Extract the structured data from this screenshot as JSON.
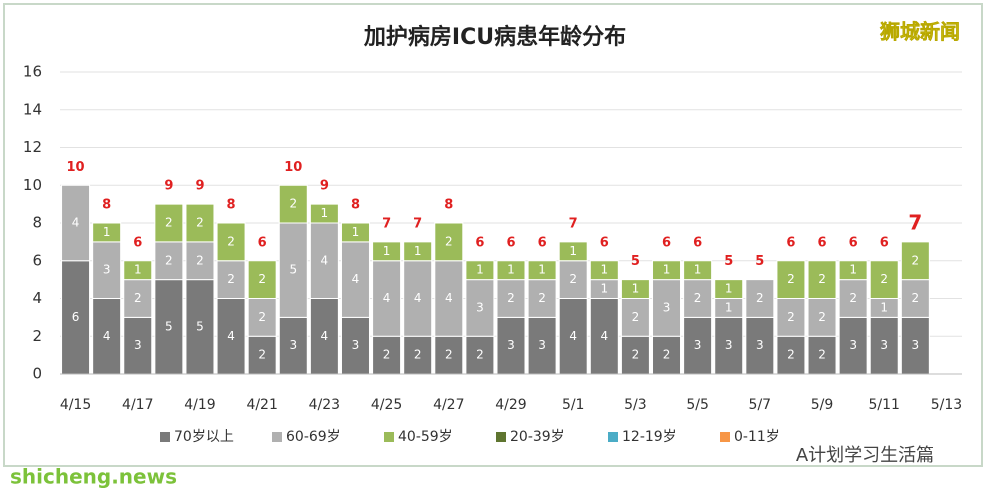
{
  "chart_data": {
    "type": "stacked-bar",
    "title": "加护病房ICU病患年龄分布",
    "categories": [
      "4/15",
      null,
      "4/17",
      null,
      "4/19",
      null,
      "4/21",
      null,
      "4/23",
      null,
      "4/25",
      null,
      "4/27",
      null,
      "4/29",
      null,
      "5/1",
      null,
      "5/3",
      null,
      "5/5",
      null,
      "5/7",
      null,
      "5/9",
      null,
      "5/11",
      null,
      "5/13"
    ],
    "series": [
      {
        "name": "70岁以上",
        "color": "#7a7a7a",
        "values": [
          6,
          4,
          3,
          5,
          5,
          4,
          2,
          3,
          4,
          3,
          2,
          2,
          2,
          2,
          3,
          3,
          4,
          4,
          2,
          2,
          3,
          3,
          3,
          2,
          2,
          3,
          3,
          3,
          null
        ]
      },
      {
        "name": "60-69岁",
        "color": "#b0b0b0",
        "values": [
          4,
          3,
          2,
          2,
          2,
          2,
          2,
          5,
          4,
          4,
          4,
          4,
          4,
          3,
          2,
          2,
          2,
          1,
          2,
          3,
          2,
          1,
          2,
          2,
          2,
          2,
          1,
          2,
          null
        ]
      },
      {
        "name": "40-59岁",
        "color": "#9bbb59",
        "values": [
          0,
          1,
          1,
          2,
          2,
          2,
          2,
          2,
          1,
          1,
          1,
          1,
          2,
          1,
          1,
          1,
          1,
          1,
          1,
          1,
          1,
          1,
          0,
          2,
          2,
          1,
          2,
          2,
          null
        ]
      },
      {
        "name": "20-39岁",
        "color": "#5f7530",
        "values": [
          0,
          0,
          0,
          0,
          0,
          0,
          0,
          0,
          0,
          0,
          0,
          0,
          0,
          0,
          0,
          0,
          0,
          0,
          0,
          0,
          0,
          0,
          0,
          0,
          0,
          0,
          0,
          0,
          null
        ]
      },
      {
        "name": "12-19岁",
        "color": "#4bacc6",
        "values": [
          0,
          0,
          0,
          0,
          0,
          0,
          0,
          0,
          0,
          0,
          0,
          0,
          0,
          0,
          0,
          0,
          0,
          0,
          0,
          0,
          0,
          0,
          0,
          0,
          0,
          0,
          0,
          0,
          null
        ]
      },
      {
        "name": "0-11岁",
        "color": "#f79646",
        "values": [
          0,
          0,
          0,
          0,
          0,
          0,
          0,
          0,
          0,
          0,
          0,
          0,
          0,
          0,
          0,
          0,
          0,
          0,
          0,
          0,
          0,
          0,
          0,
          0,
          0,
          0,
          0,
          0,
          null
        ]
      }
    ],
    "totals": [
      10,
      8,
      6,
      9,
      9,
      8,
      6,
      10,
      9,
      8,
      7,
      7,
      8,
      6,
      6,
      6,
      7,
      6,
      5,
      6,
      6,
      5,
      5,
      6,
      6,
      6,
      6,
      7,
      null
    ],
    "ylim": [
      0,
      16
    ],
    "yticks": [
      0,
      2,
      4,
      6,
      8,
      10,
      12,
      14,
      16
    ],
    "grid": true,
    "legend": "bottom"
  },
  "brand": "狮城新闻",
  "watermark": "shicheng.news",
  "account": "A计划学习生活篇"
}
